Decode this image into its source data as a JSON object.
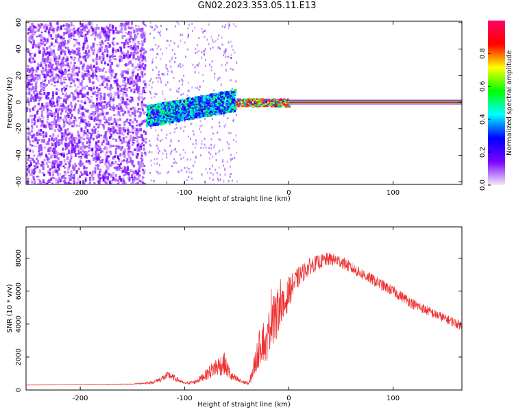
{
  "figure_title": "GN02.2023.353.05.11.E13",
  "chart_data": [
    {
      "type": "heatmap",
      "title": "",
      "xlabel": "Height of straight line (km)",
      "ylabel": "Frequency (Hz)",
      "xlim": [
        -252,
        166
      ],
      "ylim": [
        -62,
        61
      ],
      "x_ticks": [
        -200,
        -100,
        0,
        100
      ],
      "y_ticks": [
        -60,
        -40,
        -20,
        0,
        20,
        40,
        60
      ],
      "colorbar": {
        "label": "Normalized spectral amplitude",
        "range": [
          0,
          1
        ],
        "ticks": [
          "0.0",
          "0.2",
          "0.4",
          "0.6",
          "0.8"
        ],
        "tick_values": [
          0,
          0.2,
          0.4,
          0.6,
          0.8
        ],
        "colors": [
          "#f3ecfa",
          "#7b00ff",
          "#0000ff",
          "#00ffff",
          "#00ff00",
          "#ffff00",
          "#ff0000",
          "#ff0066"
        ]
      },
      "features": [
        {
          "x_range": [
            -252,
            -138
          ],
          "y_range": [
            -62,
            61
          ],
          "amplitude": 0.12
        },
        {
          "x_range": [
            -137,
            -52
          ],
          "center_hz_from": -10,
          "center_hz_to": 2,
          "width_hz": 8,
          "amplitude": 0.35
        },
        {
          "x_range": [
            -52,
            0
          ],
          "center_hz": 0,
          "width_hz": 3,
          "amplitude": 0.85
        },
        {
          "x_range": [
            0,
            166
          ],
          "center_hz": 0,
          "width_hz": 1,
          "amplitude": 0.95
        }
      ]
    },
    {
      "type": "line",
      "title": "",
      "xlabel": "Height of straight line (km)",
      "ylabel": "SNR (10 * v/v)",
      "xlim": [
        -252,
        166
      ],
      "ylim": [
        0,
        9900
      ],
      "x_ticks": [
        -200,
        -100,
        0,
        100
      ],
      "y_ticks": [
        0,
        2000,
        4000,
        6000,
        8000
      ],
      "series": [
        {
          "color": "#ee3333",
          "x": [
            -252,
            -200,
            -150,
            -130,
            -115,
            -100,
            -90,
            -80,
            -70,
            -62,
            -55,
            -45,
            -38,
            -32,
            -28,
            -25,
            -22,
            -18,
            -15,
            -12,
            -8,
            -5,
            0,
            10,
            20,
            30,
            40,
            50,
            60,
            80,
            100,
            120,
            140,
            166
          ],
          "y": [
            300,
            330,
            360,
            460,
            900,
            400,
            480,
            900,
            1400,
            1600,
            800,
            500,
            400,
            1700,
            2600,
            3200,
            2500,
            4000,
            5200,
            4200,
            5600,
            4900,
            6000,
            6900,
            7500,
            7800,
            7950,
            7800,
            7400,
            6700,
            6000,
            5200,
            4600,
            3900
          ],
          "noise": [
            10,
            10,
            15,
            80,
            250,
            60,
            120,
            300,
            600,
            700,
            300,
            120,
            120,
            800,
            1100,
            1400,
            1000,
            1500,
            2400,
            1500,
            1300,
            1100,
            900,
            600,
            500,
            450,
            400,
            400,
            350,
            350,
            330,
            320,
            300,
            280
          ]
        }
      ]
    }
  ]
}
